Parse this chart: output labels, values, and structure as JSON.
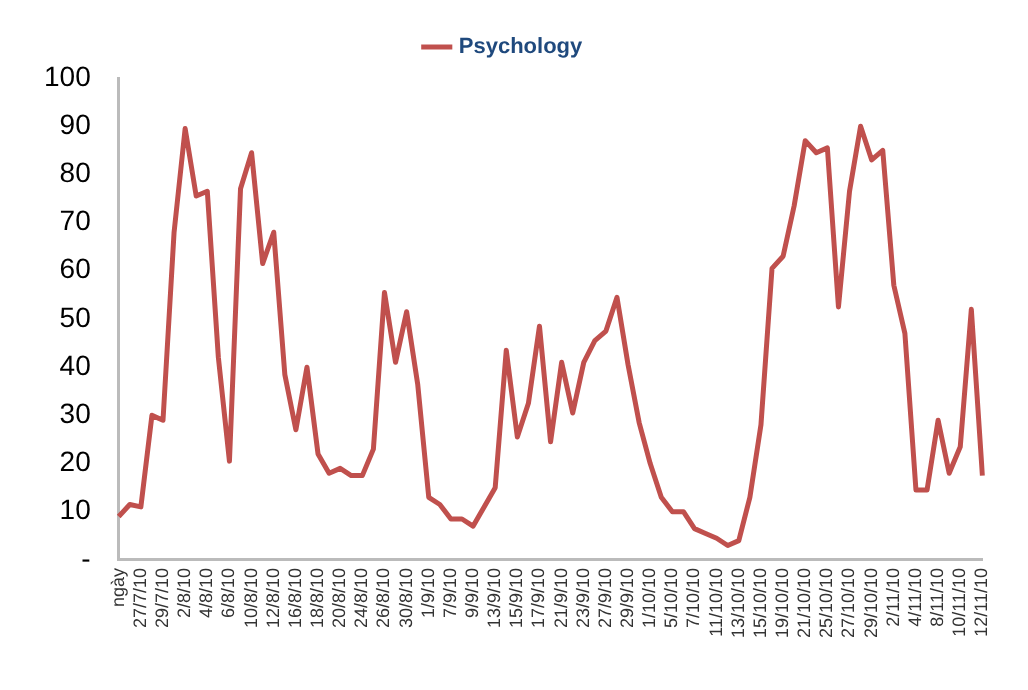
{
  "chart_data": {
    "type": "line",
    "categories": [
      "ngày",
      null,
      "27/7/10",
      null,
      "29/7/10",
      null,
      "2/8/10",
      null,
      "4/8/10",
      null,
      "6/8/10",
      null,
      "10/8/10",
      null,
      "12/8/10",
      null,
      "16/8/10",
      null,
      "18/8/10",
      null,
      "20/8/10",
      null,
      "24/8/10",
      null,
      "26/8/10",
      null,
      "30/8/10",
      null,
      "1/9/10",
      null,
      "7/9/10",
      null,
      "9/9/10",
      null,
      "13/9/10",
      null,
      "15/9/10",
      null,
      "17/9/10",
      null,
      "21/9/10",
      null,
      "23/9/10",
      null,
      "27/9/10",
      null,
      "29/9/10",
      null,
      "1/10/10",
      null,
      "5/10/10",
      null,
      "7/10/10",
      null,
      "11/10/10",
      null,
      "13/10/10",
      null,
      "15/10/10",
      null,
      "19/10/10",
      null,
      "21/10/10",
      null,
      "25/10/10",
      null,
      "27/10/10",
      null,
      "29/10/10",
      null,
      "2/11/10",
      null,
      "4/11/10",
      null,
      "8/11/10",
      null,
      "10/11/10",
      null,
      "12/11/10"
    ],
    "series": [
      {
        "name": "Psychology",
        "color": "#c0504d",
        "values": [
          9,
          11.5,
          11,
          30,
          29,
          68,
          89.5,
          75.5,
          76.5,
          42,
          20.5,
          77,
          84.5,
          61.5,
          68,
          38.5,
          27,
          40,
          22,
          18,
          19,
          17.5,
          17.5,
          23,
          55.5,
          41,
          51.5,
          36.5,
          13,
          11.5,
          8.5,
          8.5,
          7,
          11,
          15,
          43.5,
          25.5,
          32.5,
          48.5,
          24.5,
          41,
          30.5,
          41,
          45.5,
          47.5,
          54.5,
          40.5,
          28.5,
          20,
          13,
          10,
          10,
          6.5,
          5.5,
          4.5,
          3,
          4,
          13,
          28,
          60.5,
          63,
          73.5,
          87,
          84.5,
          85.5,
          52.5,
          76.5,
          90,
          83,
          85,
          57,
          47,
          14.5,
          14.5,
          29,
          18,
          23.5,
          52,
          17.5
        ]
      }
    ],
    "ylim": [
      0,
      100
    ],
    "yticks": [
      {
        "value": 0,
        "label": "-"
      },
      10,
      20,
      30,
      40,
      50,
      60,
      70,
      80,
      90,
      100
    ],
    "grid": false,
    "legend": "top",
    "marker": "none",
    "line_style": "solid"
  }
}
